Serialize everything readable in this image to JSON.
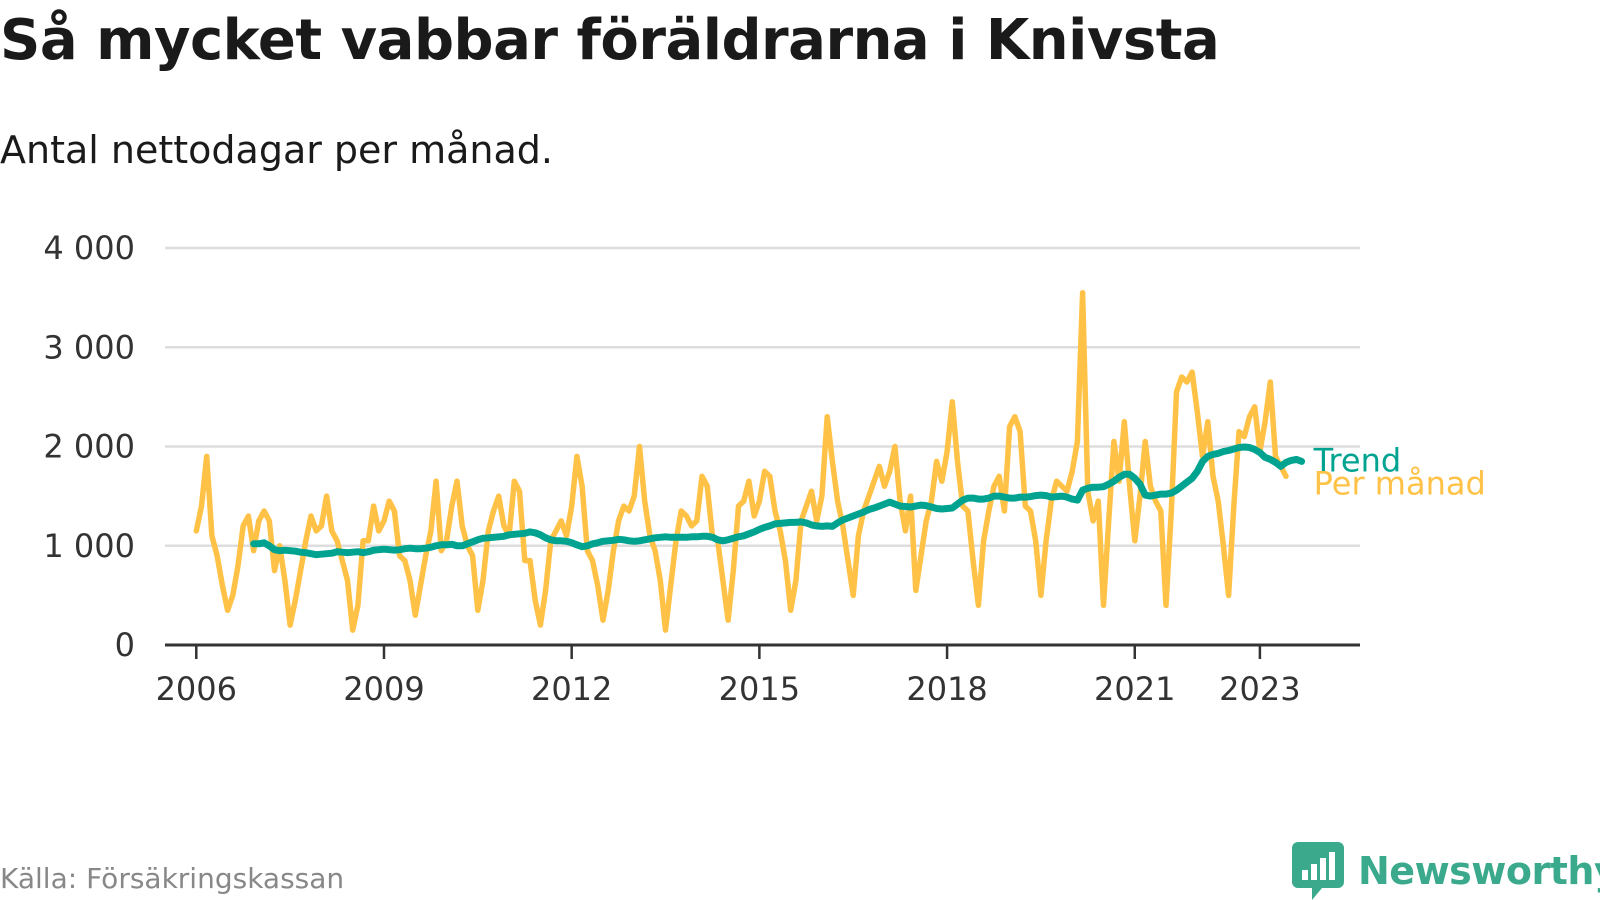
{
  "title": "Så mycket vabbar föräldrarna i Knivsta",
  "subtitle": "Antal nettodagar per månad.",
  "source": "Källa: Försäkringskassan",
  "brand": "Newsworthy",
  "colors": {
    "per_manad": "#ffc247",
    "trend": "#00a390",
    "grid": "#dddddd",
    "axis": "#333333",
    "brand": "#3aa98c"
  },
  "chart_data": {
    "type": "line",
    "title": "Så mycket vabbar föräldrarna i Knivsta",
    "subtitle": "Antal nettodagar per månad.",
    "xlabel": "",
    "ylabel": "",
    "xlim": [
      2005.5,
      2024.6
    ],
    "ylim": [
      0,
      4000
    ],
    "grid": true,
    "yticks": [
      0,
      1000,
      2000,
      3000,
      4000
    ],
    "ytick_labels": [
      "0",
      "1 000",
      "2 000",
      "3 000",
      "4 000"
    ],
    "xticks": [
      2006,
      2009,
      2012,
      2015,
      2018,
      2021,
      2023
    ],
    "xtick_labels": [
      "2006",
      "2009",
      "2012",
      "2015",
      "2018",
      "2021",
      "2023"
    ],
    "series": [
      {
        "name": "Per månad",
        "label": "Per månad",
        "x_start": 2006.0,
        "step": 0.0833333,
        "values": [
          1150,
          1400,
          1900,
          1100,
          900,
          600,
          350,
          500,
          800,
          1200,
          1300,
          950,
          1250,
          1350,
          1250,
          750,
          1000,
          650,
          200,
          450,
          750,
          1050,
          1300,
          1150,
          1200,
          1500,
          1150,
          1050,
          850,
          650,
          150,
          400,
          1050,
          1050,
          1400,
          1150,
          1250,
          1450,
          1350,
          900,
          850,
          650,
          300,
          600,
          900,
          1150,
          1650,
          950,
          1050,
          1400,
          1650,
          1200,
          1000,
          900,
          350,
          650,
          1150,
          1350,
          1500,
          1200,
          1100,
          1650,
          1550,
          850,
          850,
          450,
          200,
          550,
          1050,
          1150,
          1250,
          1100,
          1400,
          1900,
          1600,
          950,
          850,
          600,
          250,
          550,
          950,
          1250,
          1400,
          1350,
          1500,
          2000,
          1450,
          1100,
          950,
          650,
          150,
          600,
          1050,
          1350,
          1300,
          1200,
          1250,
          1700,
          1600,
          1100,
          1050,
          650,
          250,
          750,
          1400,
          1450,
          1650,
          1300,
          1450,
          1750,
          1700,
          1350,
          1150,
          850,
          350,
          650,
          1250,
          1400,
          1550,
          1250,
          1500,
          2300,
          1850,
          1450,
          1200,
          850,
          500,
          1100,
          1350,
          1500,
          1650,
          1800,
          1600,
          1750,
          2000,
          1450,
          1150,
          1500,
          550,
          900,
          1250,
          1450,
          1850,
          1650,
          1950,
          2450,
          1850,
          1400,
          1350,
          850,
          400,
          1050,
          1350,
          1600,
          1700,
          1350,
          2200,
          2300,
          2150,
          1400,
          1350,
          1050,
          500,
          1050,
          1450,
          1650,
          1600,
          1550,
          1750,
          2050,
          3550,
          1550,
          1250,
          1450,
          400,
          1250,
          2050,
          1650,
          2250,
          1600,
          1050,
          1500,
          2050,
          1600,
          1450,
          1350,
          400,
          1350,
          2550,
          2700,
          2650,
          2750,
          2350,
          1900,
          2250,
          1700,
          1450,
          1000,
          500,
          1400,
          2150,
          2100,
          2300,
          2400,
          1950,
          2250,
          2650,
          1900,
          1800,
          1700
        ]
      },
      {
        "name": "Trend",
        "label": "Trend",
        "x_start": 2006.917,
        "step": 0.0833333,
        "values": [
          1020,
          1020,
          1030,
          1000,
          960,
          950,
          955,
          950,
          945,
          935,
          930,
          920,
          910,
          915,
          920,
          925,
          940,
          935,
          930,
          935,
          940,
          930,
          940,
          955,
          960,
          965,
          960,
          955,
          960,
          970,
          975,
          970,
          970,
          975,
          985,
          1000,
          1010,
          1010,
          1015,
          1000,
          1000,
          1020,
          1040,
          1060,
          1075,
          1080,
          1085,
          1090,
          1095,
          1110,
          1115,
          1120,
          1125,
          1140,
          1130,
          1110,
          1080,
          1060,
          1050,
          1050,
          1045,
          1030,
          1010,
          990,
          1000,
          1020,
          1030,
          1045,
          1050,
          1055,
          1065,
          1060,
          1050,
          1045,
          1050,
          1060,
          1070,
          1080,
          1085,
          1090,
          1085,
          1085,
          1085,
          1085,
          1090,
          1090,
          1095,
          1095,
          1085,
          1060,
          1050,
          1060,
          1075,
          1090,
          1100,
          1120,
          1140,
          1165,
          1185,
          1200,
          1220,
          1225,
          1230,
          1235,
          1235,
          1240,
          1230,
          1210,
          1200,
          1195,
          1200,
          1195,
          1230,
          1260,
          1280,
          1300,
          1320,
          1340,
          1365,
          1380,
          1400,
          1420,
          1440,
          1420,
          1400,
          1395,
          1390,
          1400,
          1410,
          1405,
          1390,
          1375,
          1370,
          1375,
          1380,
          1420,
          1460,
          1480,
          1480,
          1470,
          1470,
          1480,
          1500,
          1500,
          1490,
          1480,
          1480,
          1490,
          1490,
          1495,
          1505,
          1510,
          1505,
          1490,
          1495,
          1500,
          1490,
          1470,
          1460,
          1560,
          1580,
          1590,
          1590,
          1595,
          1620,
          1650,
          1690,
          1720,
          1720,
          1680,
          1620,
          1510,
          1500,
          1510,
          1520,
          1520,
          1530,
          1560,
          1600,
          1640,
          1680,
          1750,
          1850,
          1900,
          1920,
          1930,
          1950,
          1960,
          1975,
          1990,
          1995,
          1990,
          1970,
          1940,
          1890,
          1870,
          1840,
          1800,
          1840,
          1860,
          1870,
          1850
        ]
      }
    ]
  }
}
